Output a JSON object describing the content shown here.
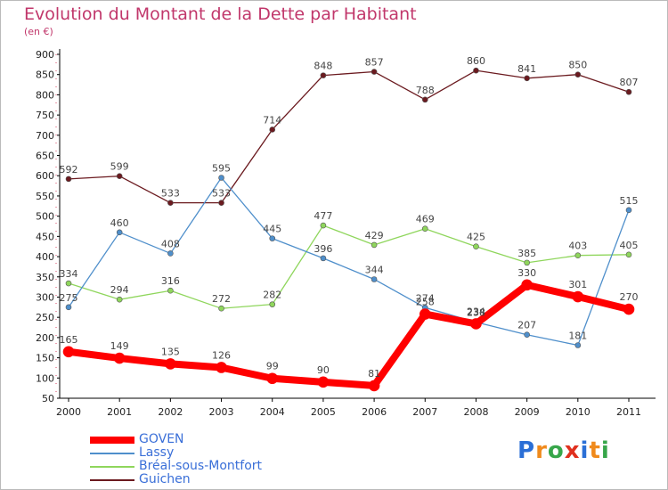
{
  "title": "Evolution du Montant de la Dette par Habitant",
  "subtitle": "(en €)",
  "logo": "Proxiti",
  "chart_data": {
    "type": "line",
    "title": "Evolution du Montant de la Dette par Habitant",
    "subtitle": "(en €)",
    "xlabel": "",
    "ylabel": "",
    "x": [
      "2000",
      "2001",
      "2002",
      "2003",
      "2004",
      "2005",
      "2006",
      "2007",
      "2008",
      "2009",
      "2010",
      "2011"
    ],
    "ylim": [
      50,
      900
    ],
    "yticks": [
      50,
      100,
      150,
      200,
      250,
      300,
      350,
      400,
      450,
      500,
      550,
      600,
      650,
      700,
      750,
      800,
      850,
      900
    ],
    "grid": false,
    "legend_position": "bottom-left",
    "series": [
      {
        "name": "GOVEN",
        "color": "#ff0000",
        "values": [
          165,
          149,
          135,
          126,
          99,
          90,
          81,
          258,
          234,
          330,
          301,
          270
        ]
      },
      {
        "name": "Lassy",
        "color": "#4f8fcb",
        "values": [
          275,
          460,
          408,
          595,
          445,
          396,
          344,
          274,
          238,
          207,
          181,
          515
        ]
      },
      {
        "name": "Bréal-sous-Montfort",
        "color": "#8fd65c",
        "values": [
          334,
          294,
          316,
          272,
          282,
          477,
          429,
          469,
          425,
          385,
          403,
          405
        ]
      },
      {
        "name": "Guichen",
        "color": "#6b1a1f",
        "values": [
          592,
          599,
          533,
          533,
          714,
          848,
          857,
          788,
          860,
          841,
          850,
          807
        ]
      }
    ]
  }
}
